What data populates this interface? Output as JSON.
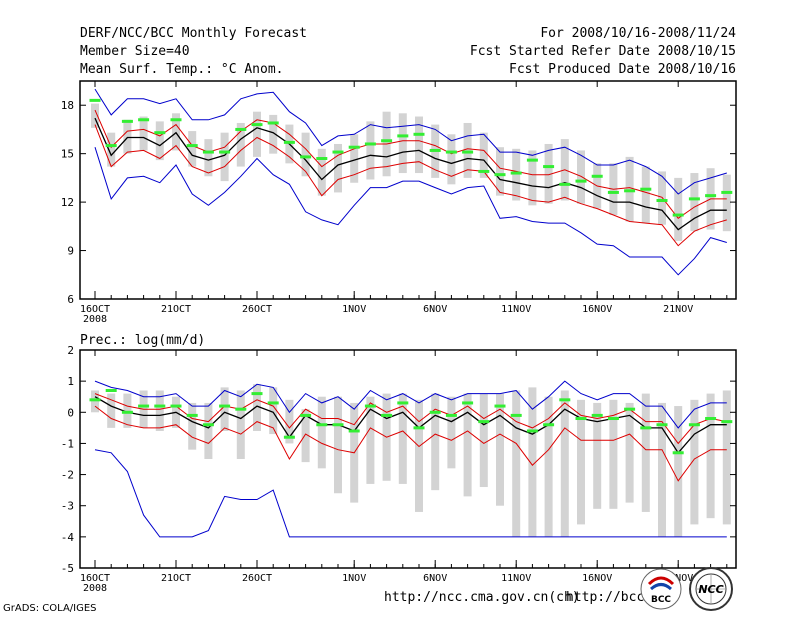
{
  "header": {
    "title": "DERF/NCC/BCC Monthly Forecast",
    "member_size": "Member Size=40",
    "variable": "Mean Surf. Temp.: °C Anom.",
    "period": "For 2008/10/16-2008/11/24",
    "started": "Fcst Started Refer Date 2008/10/15",
    "produced": "Fcst Produced Date 2008/10/16"
  },
  "footer": {
    "url1": "http://ncc.cma.gov.cn(ch)",
    "url2": "http://bcc.",
    "credit": "GrADS: COLA/IGES",
    "logo1": "BCC",
    "logo2": "NCC"
  },
  "colors": {
    "box": "#d3d3d3",
    "member": "#33ee33",
    "median": "#000000",
    "inner": "#dd0000",
    "outer": "#0000cc"
  },
  "chart_data": [
    {
      "type": "line",
      "title": "Mean Surf. Temp.: °C Anom.",
      "ylabel": "",
      "ylim": [
        6,
        19.5
      ],
      "yticks": [
        6,
        9,
        12,
        15,
        18
      ],
      "xticks": [
        {
          "day": 0,
          "label": "16OCT",
          "sub": "2008"
        },
        {
          "day": 5,
          "label": "21OCT"
        },
        {
          "day": 10,
          "label": "26OCT"
        },
        {
          "day": 16,
          "label": "1NOV"
        },
        {
          "day": 21,
          "label": "6NOV"
        },
        {
          "day": 26,
          "label": "11NOV"
        },
        {
          "day": 31,
          "label": "16NOV"
        },
        {
          "day": 36,
          "label": "21NOV"
        }
      ],
      "box_low": [
        16.6,
        14.2,
        15.0,
        15.2,
        14.6,
        15.2,
        14.2,
        13.6,
        13.3,
        14.2,
        14.8,
        15.0,
        14.4,
        13.6,
        12.4,
        12.6,
        13.2,
        13.4,
        13.6,
        13.8,
        13.8,
        13.5,
        13.1,
        13.5,
        13.5,
        12.4,
        12.1,
        11.8,
        11.9,
        12.1,
        11.9,
        11.6,
        11.2,
        10.8,
        10.7,
        10.6,
        9.6,
        10.2,
        10.3,
        10.2
      ],
      "box_high": [
        18.1,
        16.3,
        17.1,
        17.3,
        17.0,
        17.5,
        16.4,
        15.9,
        16.3,
        16.9,
        17.6,
        17.4,
        16.8,
        16.3,
        15.3,
        15.6,
        16.2,
        17.0,
        17.6,
        17.5,
        17.3,
        16.8,
        16.2,
        16.9,
        16.3,
        15.4,
        15.3,
        15.2,
        15.6,
        15.9,
        15.2,
        14.4,
        14.4,
        14.8,
        14.2,
        13.9,
        13.5,
        13.8,
        14.1,
        13.7
      ],
      "member": [
        18.3,
        15.5,
        17.0,
        17.1,
        16.3,
        17.1,
        15.5,
        15.1,
        15.1,
        16.5,
        16.8,
        16.9,
        15.7,
        14.8,
        14.7,
        15.1,
        15.4,
        15.6,
        15.8,
        16.1,
        16.2,
        15.2,
        15.1,
        15.1,
        13.9,
        13.7,
        13.8,
        14.6,
        14.2,
        13.1,
        13.3,
        13.6,
        12.6,
        12.7,
        12.8,
        12.1,
        11.2,
        12.2,
        12.4,
        12.6
      ],
      "series": [
        {
          "name": "outer-high",
          "color": "#0000cc",
          "values": [
            19.0,
            17.4,
            18.4,
            18.4,
            18.1,
            18.4,
            17.1,
            17.1,
            17.4,
            18.4,
            18.7,
            18.8,
            17.6,
            16.9,
            15.5,
            16.1,
            16.2,
            16.8,
            16.6,
            16.7,
            16.8,
            16.5,
            15.8,
            16.1,
            16.2,
            15.1,
            15.1,
            14.9,
            15.2,
            15.4,
            14.9,
            14.3,
            14.3,
            14.6,
            14.2,
            13.6,
            12.5,
            13.2,
            13.5,
            13.8
          ]
        },
        {
          "name": "inner-high",
          "color": "#dd0000",
          "values": [
            17.7,
            15.4,
            16.4,
            16.5,
            16.1,
            16.8,
            15.5,
            15.1,
            15.4,
            16.4,
            17.1,
            16.9,
            16.2,
            15.3,
            14.2,
            14.9,
            15.3,
            15.6,
            15.6,
            15.8,
            15.8,
            15.5,
            15.0,
            15.3,
            15.2,
            14.1,
            13.9,
            13.7,
            13.7,
            14.0,
            13.6,
            13.0,
            12.8,
            12.9,
            12.6,
            12.3,
            11.0,
            11.7,
            12.2,
            12.2
          ]
        },
        {
          "name": "median",
          "color": "#000000",
          "values": [
            17.2,
            14.9,
            16.0,
            16.0,
            15.5,
            16.3,
            14.9,
            14.6,
            14.9,
            15.9,
            16.6,
            16.3,
            15.6,
            14.6,
            13.4,
            14.3,
            14.6,
            14.9,
            14.8,
            15.1,
            15.2,
            14.7,
            14.4,
            14.7,
            14.6,
            13.4,
            13.2,
            13.0,
            12.9,
            13.2,
            12.9,
            12.4,
            12.0,
            12.0,
            11.7,
            11.5,
            10.3,
            11.0,
            11.5,
            11.5
          ]
        },
        {
          "name": "inner-low",
          "color": "#dd0000",
          "values": [
            16.8,
            14.2,
            15.1,
            15.2,
            14.7,
            15.5,
            14.2,
            13.8,
            14.2,
            15.2,
            16.0,
            15.5,
            14.8,
            13.9,
            12.4,
            13.4,
            13.7,
            14.1,
            14.2,
            14.4,
            14.5,
            14.0,
            13.6,
            14.0,
            13.9,
            12.6,
            12.4,
            12.1,
            12.0,
            12.3,
            11.9,
            11.6,
            11.2,
            10.8,
            10.7,
            10.6,
            9.3,
            10.2,
            10.6,
            10.9
          ]
        },
        {
          "name": "outer-low",
          "color": "#0000cc",
          "values": [
            15.4,
            12.2,
            13.5,
            13.6,
            13.2,
            14.3,
            12.5,
            11.8,
            12.6,
            13.6,
            14.7,
            13.7,
            13.1,
            11.4,
            10.9,
            10.6,
            11.8,
            12.9,
            12.9,
            13.3,
            13.3,
            12.9,
            12.5,
            12.9,
            13.0,
            11.0,
            11.1,
            10.8,
            10.7,
            10.7,
            10.1,
            9.4,
            9.3,
            8.6,
            8.6,
            8.6,
            7.5,
            8.5,
            9.8,
            9.5
          ]
        }
      ]
    },
    {
      "type": "line",
      "title": "Prec.: log(mm/d)",
      "ylabel": "",
      "ylim": [
        -5,
        2
      ],
      "yticks": [
        -5,
        -4,
        -3,
        -2,
        -1,
        0,
        1,
        2
      ],
      "xticks": [
        {
          "day": 0,
          "label": "16OCT",
          "sub": "2008"
        },
        {
          "day": 5,
          "label": "21OCT"
        },
        {
          "day": 10,
          "label": "26OCT"
        },
        {
          "day": 16,
          "label": "1NOV"
        },
        {
          "day": 21,
          "label": "6NOV"
        },
        {
          "day": 26,
          "label": "11NOV"
        },
        {
          "day": 31,
          "label": "16NOV"
        },
        {
          "day": 36,
          "label": "21NOV"
        }
      ],
      "box_low": [
        0.0,
        -0.5,
        -0.5,
        -0.5,
        -0.6,
        -0.5,
        -1.2,
        -1.5,
        -0.6,
        -1.5,
        -0.6,
        -0.7,
        -1.0,
        -1.6,
        -1.8,
        -2.6,
        -2.9,
        -2.3,
        -2.2,
        -2.3,
        -3.2,
        -2.5,
        -1.8,
        -2.7,
        -2.4,
        -3.0,
        -4.0,
        -4.0,
        -4.0,
        -4.0,
        -3.6,
        -3.1,
        -3.1,
        -2.9,
        -3.2,
        -4.0,
        -4.0,
        -3.6,
        -3.4,
        -3.6
      ],
      "box_high": [
        0.7,
        0.6,
        0.6,
        0.7,
        0.7,
        0.5,
        0.3,
        0.3,
        0.8,
        0.7,
        0.9,
        0.8,
        0.4,
        0.1,
        0.5,
        0.5,
        0.3,
        0.5,
        0.6,
        0.6,
        0.4,
        0.6,
        0.5,
        0.6,
        0.6,
        0.6,
        0.7,
        0.8,
        0.5,
        0.7,
        0.4,
        0.3,
        0.4,
        0.3,
        0.6,
        0.3,
        0.2,
        0.4,
        0.6,
        0.7
      ],
      "member": [
        0.4,
        0.7,
        0.0,
        0.2,
        0.2,
        0.2,
        -0.1,
        -0.4,
        0.2,
        0.1,
        0.6,
        0.3,
        -0.8,
        -0.1,
        -0.4,
        -0.4,
        -0.6,
        0.2,
        -0.1,
        0.3,
        -0.5,
        0.0,
        -0.1,
        0.3,
        -0.3,
        0.2,
        -0.1,
        -0.6,
        -0.4,
        0.4,
        -0.2,
        -0.1,
        -0.2,
        0.1,
        -0.5,
        -0.4,
        -1.3,
        -0.4,
        -0.2,
        -0.3
      ],
      "series": [
        {
          "name": "outer-high",
          "color": "#0000cc",
          "values": [
            1.0,
            0.8,
            0.7,
            0.5,
            0.5,
            0.6,
            0.2,
            0.2,
            0.7,
            0.5,
            0.9,
            0.8,
            0.0,
            0.6,
            0.3,
            0.5,
            0.1,
            0.7,
            0.4,
            0.6,
            0.3,
            0.6,
            0.4,
            0.6,
            0.6,
            0.6,
            0.7,
            0.1,
            0.5,
            1.0,
            0.6,
            0.4,
            0.6,
            0.6,
            0.2,
            0.2,
            -0.5,
            0.1,
            0.3,
            0.3
          ]
        },
        {
          "name": "inner-high",
          "color": "#dd0000",
          "values": [
            0.6,
            0.4,
            0.2,
            0.1,
            0.1,
            0.2,
            -0.2,
            -0.3,
            0.2,
            0.1,
            0.4,
            0.2,
            -0.5,
            0.1,
            -0.2,
            -0.2,
            -0.4,
            0.3,
            0.0,
            0.2,
            -0.3,
            0.1,
            -0.1,
            0.2,
            -0.2,
            0.1,
            -0.3,
            -0.5,
            -0.2,
            0.3,
            -0.1,
            -0.2,
            -0.1,
            0.1,
            -0.3,
            -0.3,
            -1.0,
            -0.4,
            -0.2,
            -0.3
          ]
        },
        {
          "name": "median",
          "color": "#000000",
          "values": [
            0.5,
            0.2,
            0.0,
            -0.1,
            -0.1,
            0.0,
            -0.3,
            -0.5,
            0.0,
            -0.2,
            0.2,
            0.0,
            -0.8,
            -0.1,
            -0.4,
            -0.4,
            -0.6,
            0.1,
            -0.2,
            0.0,
            -0.5,
            -0.1,
            -0.3,
            0.0,
            -0.4,
            -0.1,
            -0.5,
            -0.7,
            -0.4,
            0.1,
            -0.2,
            -0.3,
            -0.2,
            -0.1,
            -0.5,
            -0.5,
            -1.3,
            -0.7,
            -0.4,
            -0.4
          ]
        },
        {
          "name": "inner-low",
          "color": "#dd0000",
          "values": [
            0.2,
            -0.2,
            -0.4,
            -0.5,
            -0.5,
            -0.4,
            -0.8,
            -1.0,
            -0.5,
            -0.7,
            -0.3,
            -0.5,
            -1.5,
            -0.7,
            -1.0,
            -1.2,
            -1.3,
            -0.5,
            -0.8,
            -0.6,
            -1.1,
            -0.7,
            -0.9,
            -0.6,
            -1.0,
            -0.7,
            -1.0,
            -1.7,
            -1.2,
            -0.5,
            -0.9,
            -0.9,
            -0.9,
            -0.7,
            -1.2,
            -1.2,
            -2.2,
            -1.5,
            -1.2,
            -1.2
          ]
        },
        {
          "name": "outer-low",
          "color": "#0000cc",
          "values": [
            -1.2,
            -1.3,
            -1.9,
            -3.3,
            -4.0,
            -4.0,
            -4.0,
            -3.8,
            -2.7,
            -2.8,
            -2.8,
            -2.5,
            -4.0,
            -4.0,
            -4.0,
            -4.0,
            -4.0,
            -4.0,
            -4.0,
            -4.0,
            -4.0,
            -4.0,
            -4.0,
            -4.0,
            -4.0,
            -4.0,
            -4.0,
            -4.0,
            -4.0,
            -4.0,
            -4.0,
            -4.0,
            -4.0,
            -4.0,
            -4.0,
            -4.0,
            -4.0,
            -4.0,
            -4.0,
            -4.0
          ]
        }
      ]
    }
  ]
}
